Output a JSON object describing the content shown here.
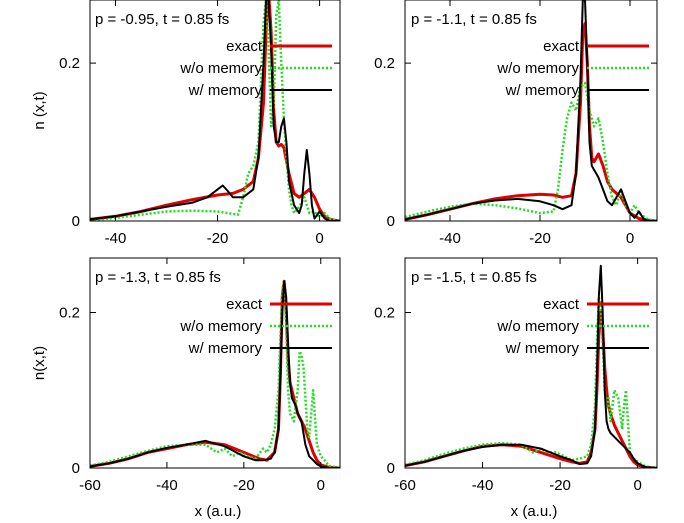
{
  "chart_data": [
    {
      "type": "line",
      "title": "p = -0.95, t = 0.85 fs",
      "xlabel": "",
      "ylabel": "n (x,t)",
      "xlim": [
        -45,
        4
      ],
      "ylim": [
        0,
        0.28
      ],
      "xticks": [
        -40,
        -20,
        0
      ],
      "yticks": [
        0,
        0.2
      ],
      "yticklabels": [
        "0",
        "0.2"
      ],
      "legend": "top-right",
      "series": [
        {
          "name": "exact",
          "color": "#e00000",
          "style": "solid",
          "width": 3,
          "x": [
            -45,
            -40,
            -35,
            -30,
            -25,
            -20,
            -17,
            -15,
            -13,
            -12,
            -11,
            -10.5,
            -10,
            -9.5,
            -9,
            -8.5,
            -8,
            -7.5,
            -7,
            -6,
            -5,
            -4,
            -3,
            -2,
            -1,
            0,
            1,
            2,
            3,
            4
          ],
          "y": [
            0.002,
            0.006,
            0.012,
            0.02,
            0.027,
            0.033,
            0.035,
            0.04,
            0.05,
            0.08,
            0.15,
            0.24,
            0.29,
            0.24,
            0.14,
            0.1,
            0.095,
            0.097,
            0.093,
            0.06,
            0.035,
            0.03,
            0.035,
            0.04,
            0.03,
            0.015,
            0.006,
            0.002,
            0.001,
            0.0
          ]
        },
        {
          "name": "w/o memory",
          "color": "#22dd22",
          "style": "dotted",
          "width": 2.5,
          "x": [
            -45,
            -40,
            -35,
            -30,
            -25,
            -20,
            -18,
            -16,
            -15,
            -14,
            -13,
            -12,
            -11,
            -10.5,
            -10,
            -9.5,
            -9,
            -8.5,
            -8,
            -7.5,
            -7,
            -6.5,
            -6,
            -5.5,
            -5,
            -4,
            -3,
            -2,
            -1,
            0,
            1,
            2,
            3,
            4
          ],
          "y": [
            0.001,
            0.004,
            0.008,
            0.012,
            0.013,
            0.012,
            0.01,
            0.008,
            0.03,
            0.06,
            0.07,
            0.1,
            0.25,
            0.28,
            0.22,
            0.12,
            0.15,
            0.26,
            0.28,
            0.2,
            0.13,
            0.08,
            0.04,
            0.02,
            0.01,
            0.018,
            0.03,
            0.01,
            0.012,
            0.005,
            0.01,
            0.003,
            0.001,
            0.0
          ]
        },
        {
          "name": "w/ memory",
          "color": "#000000",
          "style": "solid",
          "width": 2,
          "x": [
            -45,
            -40,
            -35,
            -30,
            -25,
            -22,
            -20,
            -19,
            -18,
            -17,
            -15,
            -13,
            -12,
            -11,
            -10.5,
            -10,
            -9.5,
            -9,
            -8.5,
            -8,
            -7.5,
            -7,
            -6.5,
            -6,
            -5,
            -4,
            -3.5,
            -3,
            -2.5,
            -2,
            -1.5,
            -1,
            0,
            1,
            2,
            3,
            4
          ],
          "y": [
            0.002,
            0.006,
            0.012,
            0.018,
            0.023,
            0.03,
            0.04,
            0.045,
            0.038,
            0.03,
            0.03,
            0.04,
            0.08,
            0.2,
            0.28,
            0.28,
            0.22,
            0.12,
            0.1,
            0.1,
            0.12,
            0.13,
            0.1,
            0.05,
            0.02,
            0.01,
            0.02,
            0.06,
            0.09,
            0.06,
            0.02,
            0.003,
            0.012,
            0.003,
            0.0,
            0.0,
            0.0
          ]
        }
      ]
    },
    {
      "type": "line",
      "title": "p = -1.1, t = 0.85 fs",
      "xlabel": "",
      "ylabel": "",
      "xlim": [
        -50,
        6
      ],
      "ylim": [
        0,
        0.28
      ],
      "xticks": [
        -40,
        -20,
        0
      ],
      "yticks": [
        0,
        0.2
      ],
      "yticklabels": [
        "0",
        "0.2"
      ],
      "legend": "top-right",
      "series": [
        {
          "name": "exact",
          "color": "#e00000",
          "style": "solid",
          "width": 3,
          "x": [
            -50,
            -45,
            -40,
            -35,
            -30,
            -25,
            -20,
            -17,
            -15,
            -13,
            -12,
            -11,
            -10.5,
            -10,
            -9.5,
            -9,
            -8.5,
            -8,
            -7.5,
            -7,
            -6,
            -5,
            -4,
            -3,
            -2,
            -1,
            0,
            2,
            4,
            6
          ],
          "y": [
            0.002,
            0.008,
            0.015,
            0.022,
            0.028,
            0.032,
            0.034,
            0.033,
            0.03,
            0.032,
            0.06,
            0.15,
            0.24,
            0.25,
            0.2,
            0.12,
            0.08,
            0.075,
            0.08,
            0.085,
            0.07,
            0.05,
            0.04,
            0.035,
            0.03,
            0.02,
            0.01,
            0.003,
            0.001,
            0.0
          ]
        },
        {
          "name": "w/o memory",
          "color": "#22dd22",
          "style": "dotted",
          "width": 2.5,
          "x": [
            -50,
            -45,
            -40,
            -35,
            -30,
            -25,
            -20,
            -17,
            -16,
            -15,
            -14,
            -13,
            -12,
            -11,
            -10,
            -9,
            -8,
            -7,
            -6,
            -5,
            -4,
            -3,
            -2,
            -1,
            0,
            1,
            2,
            4,
            6
          ],
          "y": [
            0.005,
            0.012,
            0.018,
            0.022,
            0.02,
            0.016,
            0.01,
            0.012,
            0.04,
            0.09,
            0.13,
            0.15,
            0.14,
            0.17,
            0.175,
            0.14,
            0.12,
            0.13,
            0.1,
            0.06,
            0.03,
            0.02,
            0.04,
            0.02,
            0.01,
            0.02,
            0.01,
            0.002,
            0.0
          ]
        },
        {
          "name": "w/ memory",
          "color": "#000000",
          "style": "solid",
          "width": 2,
          "x": [
            -50,
            -45,
            -40,
            -35,
            -30,
            -25,
            -20,
            -17,
            -15,
            -13,
            -12,
            -11,
            -10.5,
            -10,
            -9.5,
            -9,
            -8.5,
            -8,
            -7.5,
            -7,
            -6,
            -5,
            -4,
            -3,
            -2,
            -1,
            0,
            1,
            2,
            3,
            4,
            6
          ],
          "y": [
            0.002,
            0.008,
            0.015,
            0.022,
            0.026,
            0.028,
            0.025,
            0.02,
            0.015,
            0.02,
            0.06,
            0.18,
            0.28,
            0.28,
            0.2,
            0.1,
            0.07,
            0.065,
            0.06,
            0.055,
            0.04,
            0.025,
            0.02,
            0.03,
            0.04,
            0.025,
            0.01,
            0.004,
            0.012,
            0.003,
            0.0,
            0.0
          ]
        }
      ]
    },
    {
      "type": "line",
      "title": "p = -1.3, t = 0.85 fs",
      "xlabel": "x (a.u.)",
      "ylabel": "n(x,t)",
      "xlim": [
        -60,
        5
      ],
      "ylim": [
        0,
        0.27
      ],
      "xticks": [
        -60,
        -40,
        -20,
        0
      ],
      "yticks": [
        0,
        0.2
      ],
      "yticklabels": [
        "0",
        "0.2"
      ],
      "legend": "top-right",
      "series": [
        {
          "name": "exact",
          "color": "#e00000",
          "style": "solid",
          "width": 3,
          "x": [
            -60,
            -55,
            -50,
            -45,
            -40,
            -35,
            -30,
            -25,
            -20,
            -16,
            -14,
            -12,
            -11,
            -10.5,
            -10,
            -9.5,
            -9,
            -8.5,
            -8,
            -7.5,
            -7,
            -6,
            -5,
            -4,
            -3,
            -2,
            -1,
            0,
            2,
            5
          ],
          "y": [
            0.002,
            0.006,
            0.012,
            0.02,
            0.025,
            0.03,
            0.033,
            0.03,
            0.02,
            0.012,
            0.01,
            0.02,
            0.05,
            0.12,
            0.22,
            0.24,
            0.2,
            0.14,
            0.11,
            0.1,
            0.09,
            0.07,
            0.06,
            0.05,
            0.035,
            0.02,
            0.01,
            0.004,
            0.001,
            0.0
          ]
        },
        {
          "name": "w/o memory",
          "color": "#22dd22",
          "style": "dotted",
          "width": 2.5,
          "x": [
            -60,
            -55,
            -50,
            -45,
            -40,
            -35,
            -30,
            -27,
            -25,
            -23,
            -21,
            -19,
            -17,
            -15,
            -14,
            -13,
            -12,
            -11,
            -10.5,
            -10,
            -9.5,
            -9,
            -8.5,
            -8,
            -7,
            -6,
            -5.5,
            -5,
            -4.5,
            -4,
            -3.5,
            -3,
            -2.5,
            -2,
            -1,
            0,
            1,
            2,
            5
          ],
          "y": [
            0.003,
            0.008,
            0.015,
            0.022,
            0.028,
            0.03,
            0.03,
            0.02,
            0.025,
            0.015,
            0.02,
            0.015,
            0.012,
            0.025,
            0.02,
            0.03,
            0.05,
            0.1,
            0.17,
            0.23,
            0.24,
            0.18,
            0.1,
            0.07,
            0.06,
            0.1,
            0.15,
            0.145,
            0.13,
            0.09,
            0.05,
            0.04,
            0.07,
            0.1,
            0.03,
            0.015,
            0.01,
            0.003,
            0.0
          ]
        },
        {
          "name": "w/ memory",
          "color": "#000000",
          "style": "solid",
          "width": 2,
          "x": [
            -60,
            -55,
            -50,
            -45,
            -40,
            -35,
            -32,
            -30,
            -28,
            -25,
            -22,
            -20,
            -17,
            -15,
            -13,
            -12,
            -11,
            -10.5,
            -10,
            -9.5,
            -9,
            -8.5,
            -8,
            -7.5,
            -7,
            -6.5,
            -6,
            -5,
            -4,
            -3,
            -2,
            -1,
            0,
            2,
            5
          ],
          "y": [
            0.002,
            0.006,
            0.012,
            0.02,
            0.026,
            0.03,
            0.033,
            0.035,
            0.032,
            0.028,
            0.02,
            0.015,
            0.01,
            0.01,
            0.012,
            0.02,
            0.05,
            0.12,
            0.2,
            0.24,
            0.22,
            0.16,
            0.11,
            0.09,
            0.085,
            0.08,
            0.07,
            0.06,
            0.03,
            0.015,
            0.01,
            0.005,
            0.002,
            0.0,
            0.0
          ]
        }
      ]
    },
    {
      "type": "line",
      "title": "p = -1.5, t = 0.85 fs",
      "xlabel": "x (a.u.)",
      "ylabel": "",
      "xlim": [
        -60,
        5
      ],
      "ylim": [
        0,
        0.27
      ],
      "xticks": [
        -60,
        -40,
        -20,
        0
      ],
      "yticks": [
        0,
        0.2
      ],
      "yticklabels": [
        "0",
        "0.2"
      ],
      "legend": "top-right",
      "series": [
        {
          "name": "exact",
          "color": "#e00000",
          "style": "solid",
          "width": 3,
          "x": [
            -60,
            -55,
            -50,
            -45,
            -40,
            -35,
            -30,
            -25,
            -20,
            -17,
            -15,
            -13,
            -12,
            -11,
            -10.5,
            -10,
            -9.5,
            -9,
            -8.5,
            -8,
            -7.5,
            -7,
            -6,
            -5,
            -4,
            -3,
            -2,
            -1,
            0,
            2,
            5
          ],
          "y": [
            0.003,
            0.008,
            0.015,
            0.022,
            0.028,
            0.03,
            0.028,
            0.02,
            0.012,
            0.008,
            0.006,
            0.008,
            0.02,
            0.05,
            0.1,
            0.17,
            0.2,
            0.18,
            0.13,
            0.1,
            0.08,
            0.07,
            0.055,
            0.045,
            0.035,
            0.025,
            0.015,
            0.008,
            0.004,
            0.001,
            0.0
          ]
        },
        {
          "name": "w/o memory",
          "color": "#22dd22",
          "style": "dotted",
          "width": 2.5,
          "x": [
            -60,
            -55,
            -50,
            -45,
            -40,
            -35,
            -30,
            -27,
            -25,
            -23,
            -21,
            -19,
            -17,
            -15,
            -13,
            -12,
            -11,
            -10.5,
            -10,
            -9.5,
            -9,
            -8.5,
            -8,
            -7.5,
            -7,
            -6,
            -5,
            -4.5,
            -4,
            -3.5,
            -3,
            -2.5,
            -2,
            -1,
            0,
            2,
            5
          ],
          "y": [
            0.004,
            0.01,
            0.018,
            0.025,
            0.03,
            0.032,
            0.03,
            0.02,
            0.025,
            0.02,
            0.02,
            0.015,
            0.01,
            0.012,
            0.015,
            0.03,
            0.08,
            0.16,
            0.22,
            0.21,
            0.16,
            0.1,
            0.08,
            0.09,
            0.06,
            0.1,
            0.09,
            0.07,
            0.05,
            0.08,
            0.1,
            0.06,
            0.02,
            0.012,
            0.008,
            0.002,
            0.0
          ]
        },
        {
          "name": "w/ memory",
          "color": "#000000",
          "style": "solid",
          "width": 2,
          "x": [
            -60,
            -55,
            -50,
            -45,
            -40,
            -35,
            -30,
            -25,
            -20,
            -17,
            -15,
            -13,
            -12,
            -11,
            -10.5,
            -10,
            -9.5,
            -9,
            -8.5,
            -8,
            -7.5,
            -7,
            -6,
            -5,
            -4,
            -3,
            -2,
            -1,
            0,
            2,
            5
          ],
          "y": [
            0.003,
            0.008,
            0.015,
            0.022,
            0.027,
            0.03,
            0.03,
            0.025,
            0.015,
            0.01,
            0.005,
            0.006,
            0.015,
            0.05,
            0.12,
            0.22,
            0.26,
            0.2,
            0.1,
            0.06,
            0.05,
            0.045,
            0.04,
            0.035,
            0.03,
            0.025,
            0.02,
            0.012,
            0.006,
            0.001,
            0.0
          ]
        }
      ]
    }
  ]
}
